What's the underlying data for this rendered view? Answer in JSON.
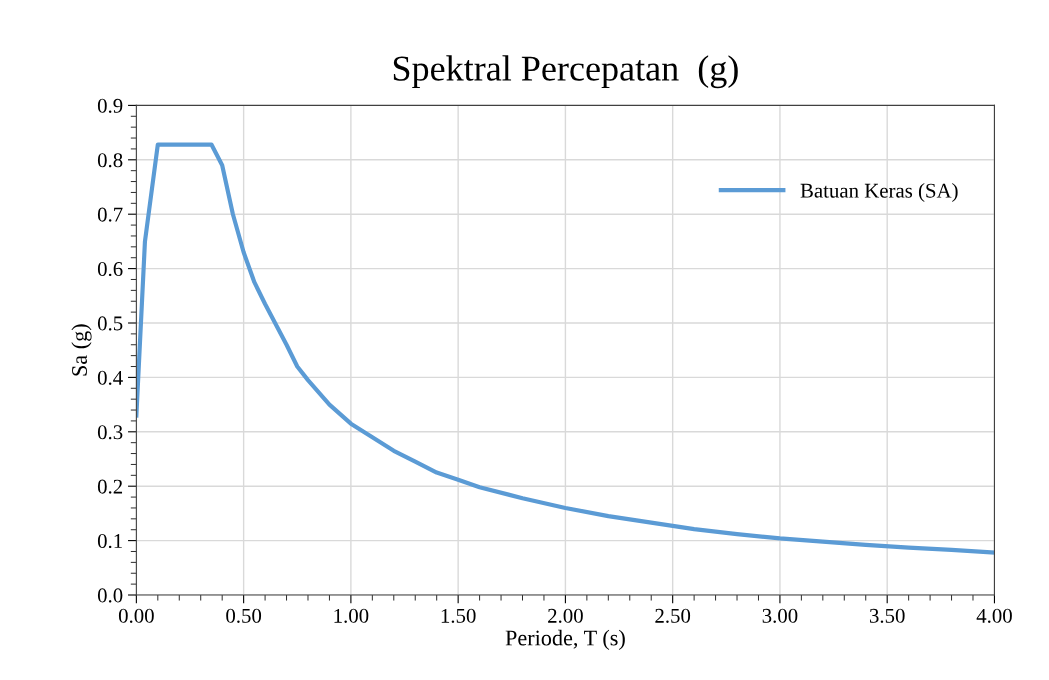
{
  "chart_data": {
    "type": "line",
    "title": "Spektral Percepatan  (g)",
    "xlabel": "Periode, T (s)",
    "ylabel": "Sa (g)",
    "x": [
      0,
      0.04,
      0.1,
      0.35,
      0.4,
      0.45,
      0.5,
      0.55,
      0.6,
      0.7,
      0.75,
      0.8,
      0.9,
      1.0,
      1.1,
      1.2,
      1.3,
      1.4,
      1.5,
      1.6,
      1.8,
      2.0,
      2.2,
      2.4,
      2.6,
      2.8,
      3.0,
      3.2,
      3.4,
      3.6,
      3.8,
      4.0
    ],
    "series": [
      {
        "name": "Batuan Keras (SA)",
        "color": "#5b9bd5",
        "values": [
          0.33,
          0.65,
          0.828,
          0.828,
          0.79,
          0.7,
          0.63,
          0.575,
          0.535,
          0.46,
          0.42,
          0.395,
          0.35,
          0.315,
          0.29,
          0.265,
          0.245,
          0.225,
          0.212,
          0.198,
          0.178,
          0.16,
          0.145,
          0.133,
          0.121,
          0.112,
          0.104,
          0.098,
          0.092,
          0.087,
          0.083,
          0.078
        ]
      }
    ],
    "xlim": [
      0,
      4
    ],
    "ylim": [
      0,
      0.9
    ],
    "xticks": [
      {
        "value": 0,
        "label": "0.00"
      },
      {
        "value": 0.5,
        "label": "0.50"
      },
      {
        "value": 1,
        "label": "1.00"
      },
      {
        "value": 1.5,
        "label": "1.50"
      },
      {
        "value": 2,
        "label": "2.00"
      },
      {
        "value": 2.5,
        "label": "2.50"
      },
      {
        "value": 3,
        "label": "3.00"
      },
      {
        "value": 3.5,
        "label": "3.50"
      },
      {
        "value": 4,
        "label": "4.00"
      }
    ],
    "yticks": [
      {
        "value": 0,
        "label": "0.0"
      },
      0.1,
      0.2,
      0.3,
      0.4,
      0.5,
      0.6,
      0.7,
      0.8,
      0.9
    ],
    "grid": true,
    "legend": "top right",
    "marker": "none",
    "line_style": "solid"
  }
}
